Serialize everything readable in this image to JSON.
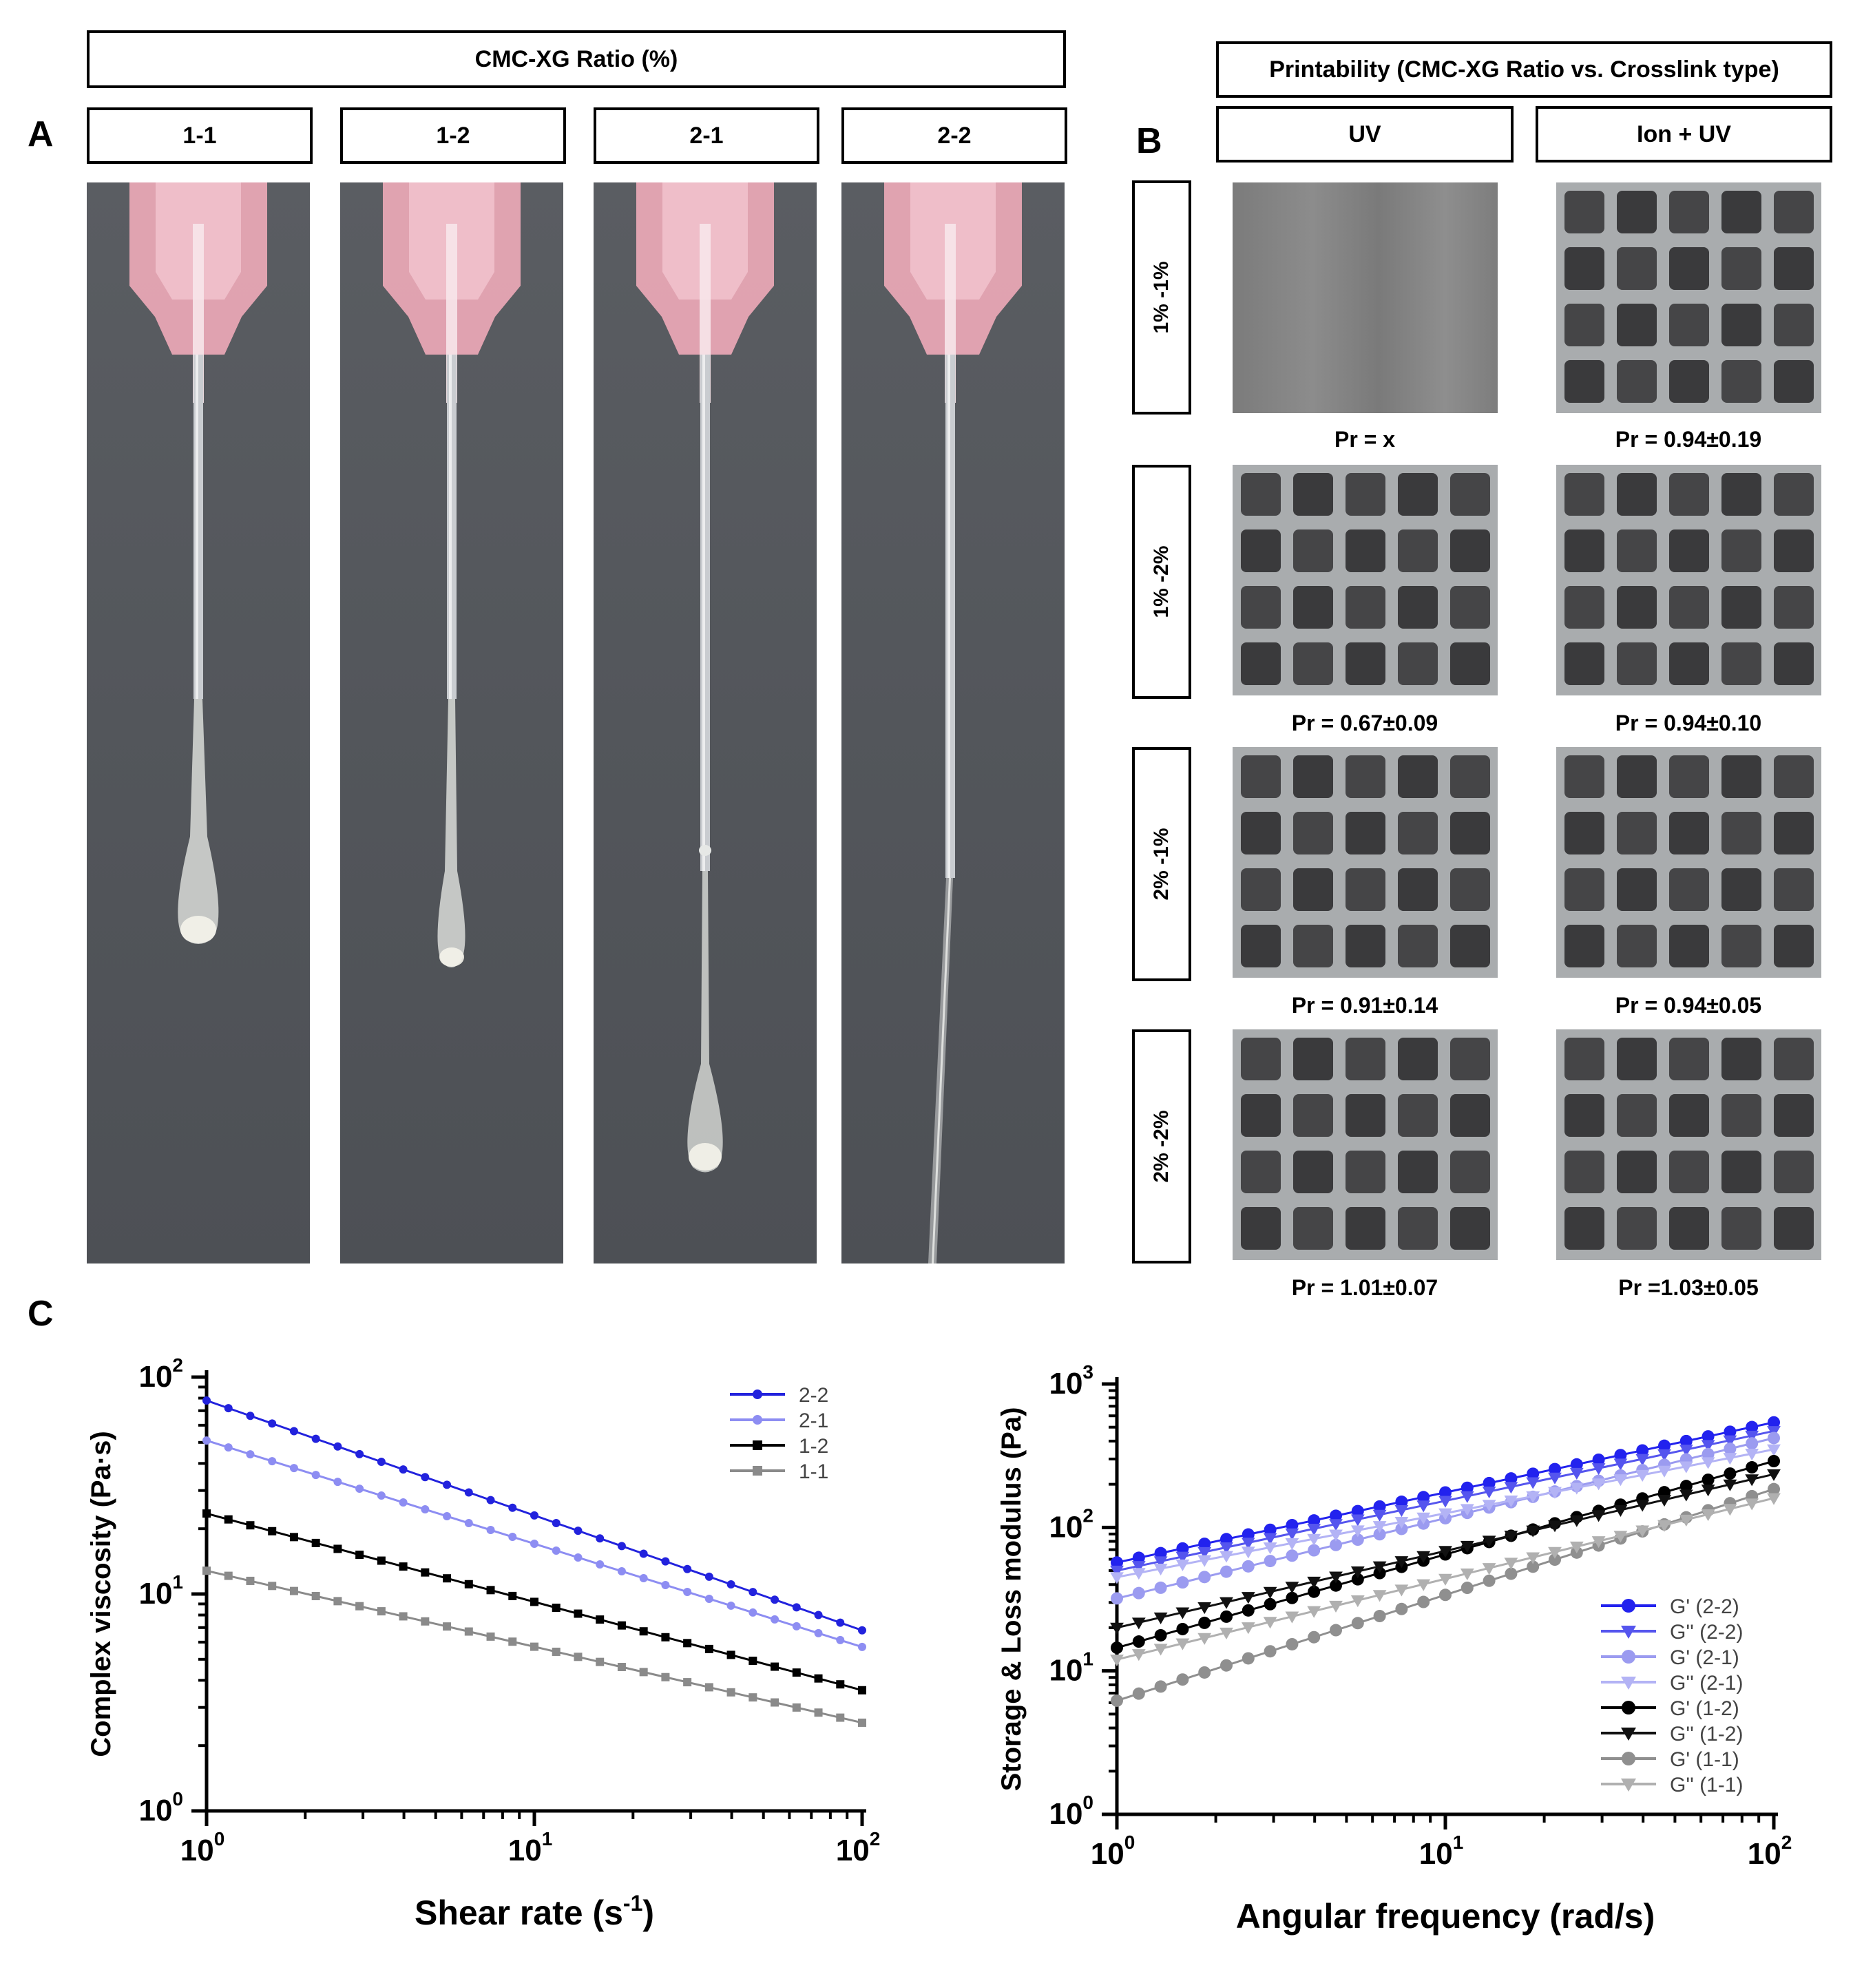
{
  "panelA": {
    "letter": "A",
    "header": "CMC-XG Ratio (%)",
    "columns": [
      "1-1",
      "1-2",
      "2-1",
      "2-2"
    ]
  },
  "panelB": {
    "letter": "B",
    "header": "Printability (CMC-XG Ratio vs. Crosslink type)",
    "col_headers": [
      "UV",
      "Ion + UV"
    ],
    "rows": [
      {
        "label": "1% -1%",
        "uv": "Pr = x",
        "ion": "Pr = 0.94±0.19"
      },
      {
        "label": "1% -2%",
        "uv": "Pr = 0.67±0.09",
        "ion": "Pr = 0.94±0.10"
      },
      {
        "label": "2% -1%",
        "uv": "Pr = 0.91±0.14",
        "ion": "Pr = 0.94±0.05"
      },
      {
        "label": "2% -2%",
        "uv": "Pr = 1.01±0.07",
        "ion": "Pr =1.03±0.05"
      }
    ]
  },
  "panelC": {
    "letter": "C"
  },
  "chart_data": [
    {
      "type": "line",
      "xlabel": "Shear rate (s-1)",
      "ylabel": "Complex viscosity (Pa·s)",
      "xscale": "log",
      "yscale": "log",
      "xlim": [
        1,
        100
      ],
      "ylim": [
        1,
        100
      ],
      "legend": "top-right",
      "series": [
        {
          "name": "2-2",
          "color": "#2222dd",
          "marker": "circle",
          "y_at_1": 78,
          "y_at_100": 6.8
        },
        {
          "name": "2-1",
          "color": "#8d8df2",
          "marker": "circle",
          "y_at_1": 51,
          "y_at_100": 5.7
        },
        {
          "name": "1-2",
          "color": "#000000",
          "marker": "square",
          "y_at_1": 23.5,
          "y_at_100": 3.6
        },
        {
          "name": "1-1",
          "color": "#8a8a8a",
          "marker": "square",
          "y_at_1": 12.8,
          "y_at_100": 2.55
        }
      ]
    },
    {
      "type": "line",
      "xlabel": "Angular frequency (rad/s)",
      "ylabel": "Storage & Loss modulus (Pa)",
      "xscale": "log",
      "yscale": "log",
      "xlim": [
        1,
        100
      ],
      "ylim": [
        1,
        1000
      ],
      "legend": "bottom-right",
      "series": [
        {
          "name": "G' (2-2)",
          "color": "#2222ee",
          "marker": "circle",
          "y_at_1": 57,
          "y_at_100": 540
        },
        {
          "name": "G'' (2-2)",
          "color": "#5555ee",
          "marker": "triangle-down",
          "y_at_1": 50,
          "y_at_100": 470
        },
        {
          "name": "G' (2-1)",
          "color": "#9b9bf0",
          "marker": "circle",
          "y_at_1": 32,
          "y_at_100": 420
        },
        {
          "name": "G'' (2-1)",
          "color": "#b3b3f5",
          "marker": "triangle-down",
          "y_at_1": 45,
          "y_at_100": 350
        },
        {
          "name": "G' (1-2)",
          "color": "#000000",
          "marker": "circle",
          "y_at_1": 14.5,
          "y_at_100": 290
        },
        {
          "name": "G'' (1-2)",
          "color": "#111111",
          "marker": "triangle-down",
          "y_at_1": 20,
          "y_at_100": 235
        },
        {
          "name": "G' (1-1)",
          "color": "#8f8f8f",
          "marker": "circle",
          "y_at_1": 6.2,
          "y_at_100": 185
        },
        {
          "name": "G'' (1-1)",
          "color": "#b0b0b0",
          "marker": "triangle-down",
          "y_at_1": 12,
          "y_at_100": 160
        }
      ]
    }
  ]
}
